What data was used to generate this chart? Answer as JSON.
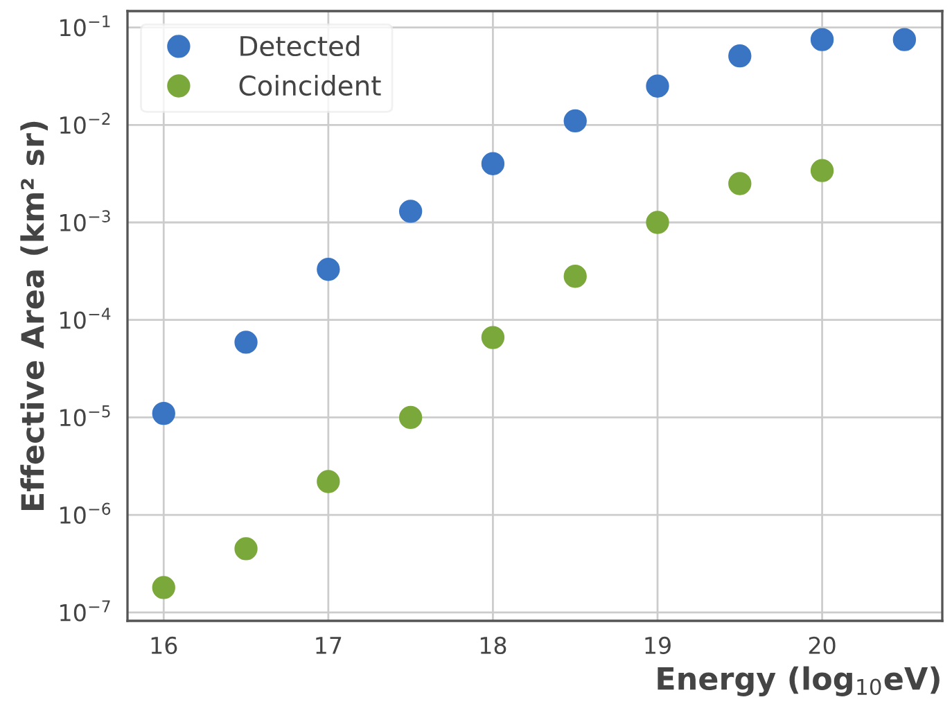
{
  "chart_data": {
    "type": "scatter",
    "xlabel": "Energy (log$_{10}$eV)",
    "ylabel": "Effective Area (km² sr)",
    "x": [
      16,
      16.5,
      17,
      17.5,
      18,
      18.5,
      19,
      19.5,
      20,
      20.5
    ],
    "series": [
      {
        "name": "Detected",
        "color": "#3a75c4",
        "values": [
          1.1e-05,
          5.9e-05,
          0.00033,
          0.0013,
          0.004,
          0.011,
          0.025,
          0.051,
          0.075,
          0.075
        ]
      },
      {
        "name": "Coincident",
        "color": "#7ba83a",
        "values": [
          1.8e-07,
          4.5e-07,
          2.2e-06,
          1e-05,
          6.6e-05,
          0.00028,
          0.001,
          0.0025,
          0.0034,
          null
        ]
      }
    ],
    "log": "y",
    "xlim": [
      15.78,
      20.73
    ],
    "ylim": [
      8.2e-08,
      0.147
    ],
    "xticks": [
      16,
      17,
      18,
      19,
      20
    ],
    "yticks": [
      {
        "value": 1e-07,
        "label": "10$^{−7}$"
      },
      {
        "value": 1e-06,
        "label": "10$^{−6}$"
      },
      {
        "value": 1e-05,
        "label": "10$^{−5}$"
      },
      {
        "value": 0.0001,
        "label": "10$^{−4}$"
      },
      {
        "value": 0.001,
        "label": "10$^{−3}$"
      },
      {
        "value": 0.01,
        "label": "10$^{−2}$"
      },
      {
        "value": 0.1,
        "label": "10$^{−1}$"
      }
    ],
    "grid": true,
    "legend": "top left",
    "marker": "circle"
  }
}
